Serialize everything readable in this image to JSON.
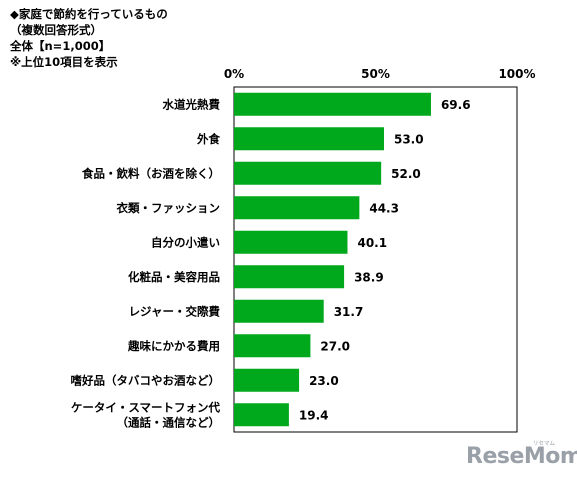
{
  "header": {
    "line1": "◆家庭で節約を行っているもの",
    "line2": "（複数回答形式）",
    "line3": "全体【n=1,000】",
    "line4": "※上位10項目を表示"
  },
  "logo": {
    "text": "ReseMom",
    "sub": "リセマム"
  },
  "chart_data": {
    "type": "bar",
    "orientation": "horizontal",
    "categories": [
      [
        "水道光熱費"
      ],
      [
        "外食"
      ],
      [
        "食品・飲料（お酒を除く）"
      ],
      [
        "衣類・ファッション"
      ],
      [
        "自分の小遣い"
      ],
      [
        "化粧品・美容用品"
      ],
      [
        "レジャー・交際費"
      ],
      [
        "趣味にかかる費用"
      ],
      [
        "嗜好品（タバコやお酒など）"
      ],
      [
        "ケータイ・スマートフォン代",
        "（通話・通信など）"
      ]
    ],
    "values": [
      69.6,
      53.0,
      52.0,
      44.3,
      40.1,
      38.9,
      31.7,
      27.0,
      23.0,
      19.4
    ],
    "value_labels": [
      "69.6",
      "53.0",
      "52.0",
      "44.3",
      "40.1",
      "38.9",
      "31.7",
      "27.0",
      "23.0",
      "19.4"
    ],
    "xlim": [
      0,
      100
    ],
    "ticks": [
      0,
      50,
      100
    ],
    "tick_labels": [
      "0%",
      "50%",
      "100%"
    ],
    "bar_color": "#00a81c",
    "grid": false
  }
}
